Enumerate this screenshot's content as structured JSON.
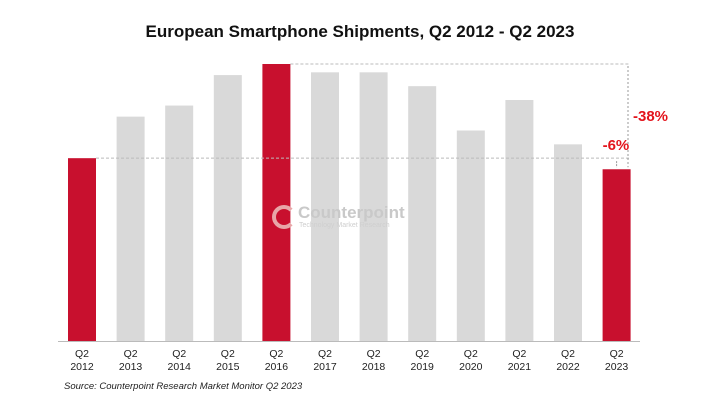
{
  "chart_data": {
    "type": "bar",
    "title": "European Smartphone Shipments, Q2 2012 - Q2 2023",
    "xlabel": "",
    "ylabel": "",
    "categories": [
      "Q2 2012",
      "Q2 2013",
      "Q2 2014",
      "Q2 2015",
      "Q2 2016",
      "Q2 2017",
      "Q2 2018",
      "Q2 2019",
      "Q2 2020",
      "Q2 2021",
      "Q2 2022",
      "Q2 2023"
    ],
    "values_relative_to_peak": [
      0.66,
      0.81,
      0.85,
      0.96,
      1.0,
      0.97,
      0.97,
      0.92,
      0.76,
      0.87,
      0.71,
      0.62
    ],
    "highlighted": [
      "Q2 2012",
      "Q2 2016",
      "Q2 2023"
    ],
    "colors": {
      "highlight": "#c8102e",
      "default": "#d9d9d9",
      "annotation": "#e3141c"
    },
    "annotations": [
      {
        "text": "-6%",
        "from": "Q2 2012",
        "to": "Q2 2023"
      },
      {
        "text": "-38%",
        "from": "Q2 2016",
        "to": "Q2 2023"
      }
    ],
    "grid": false,
    "legend": "none"
  },
  "source": "Source: Counterpoint Research Market Monitor Q2 2023",
  "watermark": {
    "name": "Counterpoint",
    "tagline": "Technology Market Research"
  }
}
